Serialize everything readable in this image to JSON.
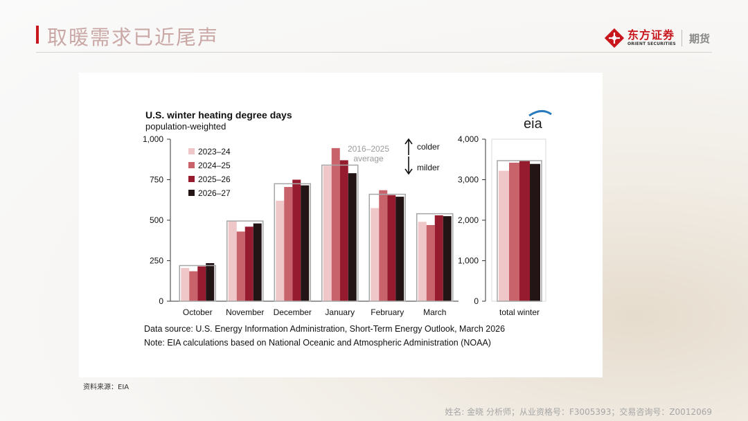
{
  "header": {
    "title": "取暖需求已近尾声"
  },
  "brand": {
    "name": "东方证券",
    "name_en": "ORIENT SECURITIES",
    "suffix": "期货"
  },
  "source_note": "资料来源：EIA",
  "footer": {
    "analyst": "姓名: 金晓 分析师；从业资格号：F3005393；交易咨询号：Z0012069"
  },
  "colors": {
    "accent": "#c8161d",
    "series": [
      "#f0c7c8",
      "#c8636c",
      "#971b2f",
      "#231516"
    ]
  },
  "chart_data": [
    {
      "type": "bar",
      "title": "U.S. winter heating degree days",
      "subtitle": "population-weighted",
      "categories": [
        "October",
        "November",
        "December",
        "January",
        "February",
        "March"
      ],
      "ylim": [
        0,
        1000
      ],
      "yticks": [
        "0",
        "250",
        "500",
        "750",
        "1,000"
      ],
      "series": [
        {
          "name": "2023–24",
          "values": [
            205,
            495,
            620,
            835,
            575,
            490
          ]
        },
        {
          "name": "2024–25",
          "values": [
            185,
            430,
            705,
            945,
            685,
            470
          ]
        },
        {
          "name": "2025–26",
          "values": [
            215,
            460,
            750,
            870,
            655,
            530
          ]
        },
        {
          "name": "2026–27",
          "values": [
            235,
            480,
            715,
            790,
            645,
            525
          ]
        }
      ],
      "average": {
        "name": "2016–2025 average",
        "label_line1": "2016–2025",
        "label_line2": "average",
        "values": [
          220,
          495,
          725,
          840,
          660,
          540
        ]
      },
      "annotations": {
        "colder": "colder",
        "milder": "milder"
      },
      "logo": "eia",
      "source_line": "Data source: U.S. Energy Information Administration, Short-Term Energy Outlook, March 2026",
      "note_line": "Note: EIA calculations based on National Oceanic and Atmospheric Administration (NOAA)"
    },
    {
      "type": "bar",
      "categories": [
        "total winter"
      ],
      "ylim": [
        0,
        4000
      ],
      "yticks": [
        "0",
        "1,000",
        "2,000",
        "3,000",
        "4,000"
      ],
      "series": [
        {
          "name": "2023–24",
          "values": [
            3220
          ]
        },
        {
          "name": "2024–25",
          "values": [
            3420
          ]
        },
        {
          "name": "2025–26",
          "values": [
            3470
          ]
        },
        {
          "name": "2026–27",
          "values": [
            3390
          ]
        }
      ],
      "average": {
        "values": [
          3470
        ]
      }
    }
  ]
}
